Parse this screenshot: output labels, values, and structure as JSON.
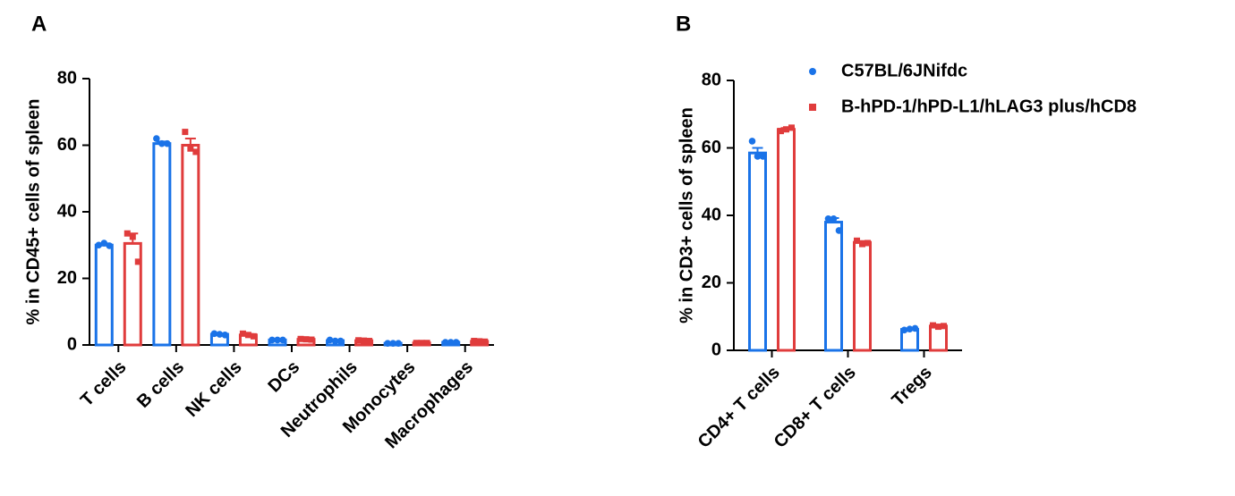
{
  "chart_data": [
    {
      "type": "bar",
      "panel": "A",
      "ylabel": "% in CD45+ cells of spleen",
      "categories": [
        "T cells",
        "B cells",
        "NK cells",
        "DCs",
        "Neutrophils",
        "Monocytes",
        "Macrophages"
      ],
      "ylim": [
        0,
        80
      ],
      "yticks": [
        0,
        20,
        40,
        60,
        80
      ],
      "series": [
        {
          "color": "#1a73e8",
          "marker": "circle",
          "values": [
            30,
            60.5,
            3.2,
            1.5,
            1.3,
            0.5,
            0.8
          ],
          "errors": [
            0.5,
            0.6,
            0.2,
            0.1,
            0.2,
            0.05,
            0.1
          ],
          "points": [
            [
              30,
              30.6,
              29.8
            ],
            [
              62,
              60.5,
              60.5
            ],
            [
              3.4,
              3.2,
              3.0
            ],
            [
              1.5,
              1.5,
              1.5
            ],
            [
              1.5,
              1.2,
              1.2
            ],
            [
              0.5,
              0.5,
              0.5
            ],
            [
              0.8,
              0.8,
              0.8
            ]
          ]
        },
        {
          "color": "#e03c3c",
          "marker": "square",
          "values": [
            30.5,
            60,
            3,
            1.7,
            1.3,
            0.6,
            1.1
          ],
          "errors": [
            3,
            2,
            0.3,
            0.1,
            0.1,
            0.05,
            0.1
          ],
          "points": [
            [
              33.5,
              32.5,
              25
            ],
            [
              64,
              59,
              58
            ],
            [
              3.4,
              3.0,
              2.6
            ],
            [
              1.8,
              1.7,
              1.6
            ],
            [
              1.4,
              1.3,
              1.2
            ],
            [
              0.6,
              0.6,
              0.6
            ],
            [
              1.2,
              1.1,
              1.0
            ]
          ]
        }
      ]
    },
    {
      "type": "bar",
      "panel": "B",
      "ylabel": "% in CD3+ cells of spleen",
      "categories": [
        "CD4+ T cells",
        "CD8+ T cells",
        "Tregs"
      ],
      "ylim": [
        0,
        80
      ],
      "yticks": [
        0,
        20,
        40,
        60,
        80
      ],
      "series": [
        {
          "name": "C57BL/6JNifdc",
          "color": "#1a73e8",
          "marker": "circle",
          "values": [
            58.5,
            38,
            6.2
          ],
          "errors": [
            1.5,
            1.2,
            0.3
          ],
          "points": [
            [
              62,
              57.5,
              57.5
            ],
            [
              39,
              39,
              35.5
            ],
            [
              6,
              6.3,
              6.5
            ]
          ]
        },
        {
          "name": "B-hPD-1/hPD-L1/hLAG3 plus/hCD8",
          "color": "#e03c3c",
          "marker": "square",
          "values": [
            65.5,
            32,
            7.2
          ],
          "errors": [
            0.4,
            0.4,
            0.2
          ],
          "points": [
            [
              65,
              65.5,
              66
            ],
            [
              32.5,
              31.5,
              31.8
            ],
            [
              7.4,
              7.0,
              7.2
            ]
          ]
        }
      ]
    }
  ]
}
